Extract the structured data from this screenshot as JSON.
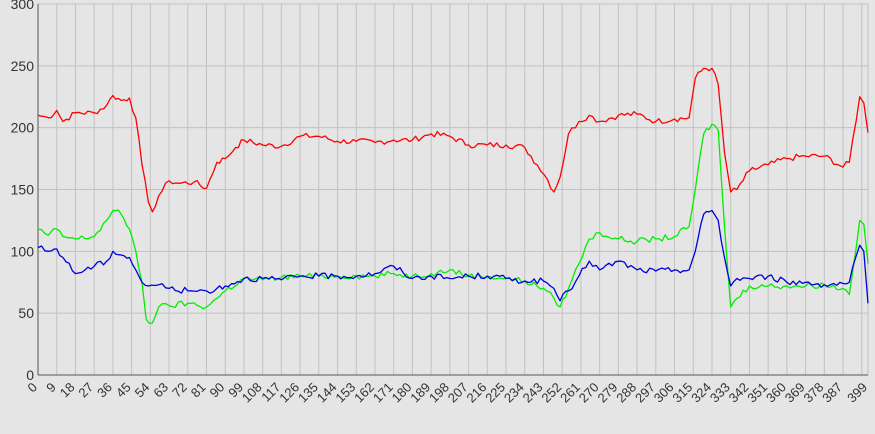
{
  "chart_data": {
    "type": "line",
    "title": "",
    "xlabel": "",
    "ylabel": "",
    "xlim": [
      0,
      399
    ],
    "ylim": [
      0,
      300
    ],
    "grid": true,
    "y_ticks": [
      "0",
      "50",
      "100",
      "150",
      "200",
      "250",
      "300"
    ],
    "x_ticks": [
      "0",
      "9",
      "18",
      "27",
      "36",
      "45",
      "54",
      "63",
      "72",
      "81",
      "90",
      "99",
      "108",
      "117",
      "126",
      "135",
      "144",
      "153",
      "162",
      "171",
      "180",
      "189",
      "198",
      "207",
      "216",
      "225",
      "234",
      "243",
      "252",
      "261",
      "270",
      "279",
      "288",
      "297",
      "306",
      "315",
      "324",
      "333",
      "342",
      "351",
      "360",
      "369",
      "378",
      "387",
      "399"
    ],
    "series": [
      {
        "color": "#ff0000",
        "points": [
          [
            0,
            210
          ],
          [
            5,
            208
          ],
          [
            9,
            214
          ],
          [
            12,
            205
          ],
          [
            18,
            212
          ],
          [
            27,
            212
          ],
          [
            33,
            218
          ],
          [
            36,
            226
          ],
          [
            40,
            222
          ],
          [
            44,
            224
          ],
          [
            47,
            208
          ],
          [
            50,
            170
          ],
          [
            53,
            140
          ],
          [
            55,
            132
          ],
          [
            58,
            145
          ],
          [
            63,
            157
          ],
          [
            68,
            155
          ],
          [
            75,
            156
          ],
          [
            81,
            151
          ],
          [
            86,
            172
          ],
          [
            90,
            175
          ],
          [
            95,
            184
          ],
          [
            99,
            190
          ],
          [
            108,
            186
          ],
          [
            117,
            185
          ],
          [
            126,
            193
          ],
          [
            135,
            193
          ],
          [
            144,
            189
          ],
          [
            153,
            189
          ],
          [
            162,
            188
          ],
          [
            171,
            190
          ],
          [
            180,
            190
          ],
          [
            189,
            195
          ],
          [
            198,
            193
          ],
          [
            207,
            186
          ],
          [
            216,
            186
          ],
          [
            225,
            186
          ],
          [
            234,
            184
          ],
          [
            240,
            170
          ],
          [
            245,
            158
          ],
          [
            248,
            148
          ],
          [
            251,
            160
          ],
          [
            255,
            195
          ],
          [
            260,
            205
          ],
          [
            265,
            210
          ],
          [
            270,
            205
          ],
          [
            279,
            210
          ],
          [
            288,
            211
          ],
          [
            297,
            205
          ],
          [
            306,
            207
          ],
          [
            313,
            208
          ],
          [
            316,
            240
          ],
          [
            320,
            248
          ],
          [
            324,
            248
          ],
          [
            327,
            235
          ],
          [
            330,
            180
          ],
          [
            333,
            148
          ],
          [
            336,
            150
          ],
          [
            342,
            165
          ],
          [
            351,
            170
          ],
          [
            360,
            175
          ],
          [
            369,
            177
          ],
          [
            378,
            177
          ],
          [
            387,
            168
          ],
          [
            390,
            172
          ],
          [
            395,
            225
          ],
          [
            397,
            220
          ],
          [
            399,
            196
          ]
        ]
      },
      {
        "color": "#00ee00",
        "points": [
          [
            0,
            118
          ],
          [
            5,
            113
          ],
          [
            9,
            118
          ],
          [
            12,
            112
          ],
          [
            18,
            110
          ],
          [
            27,
            112
          ],
          [
            33,
            125
          ],
          [
            36,
            133
          ],
          [
            40,
            130
          ],
          [
            44,
            118
          ],
          [
            47,
            100
          ],
          [
            50,
            75
          ],
          [
            52,
            45
          ],
          [
            55,
            42
          ],
          [
            58,
            55
          ],
          [
            63,
            56
          ],
          [
            72,
            58
          ],
          [
            81,
            55
          ],
          [
            86,
            62
          ],
          [
            90,
            68
          ],
          [
            99,
            78
          ],
          [
            108,
            77
          ],
          [
            117,
            79
          ],
          [
            126,
            80
          ],
          [
            135,
            80
          ],
          [
            144,
            80
          ],
          [
            153,
            80
          ],
          [
            162,
            80
          ],
          [
            171,
            82
          ],
          [
            180,
            80
          ],
          [
            189,
            82
          ],
          [
            198,
            85
          ],
          [
            207,
            80
          ],
          [
            216,
            80
          ],
          [
            225,
            78
          ],
          [
            234,
            76
          ],
          [
            243,
            70
          ],
          [
            248,
            62
          ],
          [
            251,
            55
          ],
          [
            255,
            70
          ],
          [
            260,
            90
          ],
          [
            265,
            110
          ],
          [
            270,
            115
          ],
          [
            279,
            110
          ],
          [
            288,
            108
          ],
          [
            297,
            110
          ],
          [
            306,
            112
          ],
          [
            313,
            120
          ],
          [
            316,
            150
          ],
          [
            320,
            195
          ],
          [
            324,
            203
          ],
          [
            327,
            198
          ],
          [
            330,
            120
          ],
          [
            333,
            55
          ],
          [
            336,
            62
          ],
          [
            342,
            72
          ],
          [
            351,
            72
          ],
          [
            360,
            72
          ],
          [
            369,
            72
          ],
          [
            378,
            73
          ],
          [
            387,
            70
          ],
          [
            390,
            65
          ],
          [
            395,
            125
          ],
          [
            397,
            122
          ],
          [
            399,
            90
          ]
        ]
      },
      {
        "color": "#0000dd",
        "points": [
          [
            0,
            103
          ],
          [
            5,
            100
          ],
          [
            9,
            102
          ],
          [
            12,
            95
          ],
          [
            18,
            82
          ],
          [
            27,
            88
          ],
          [
            33,
            92
          ],
          [
            36,
            100
          ],
          [
            40,
            97
          ],
          [
            44,
            95
          ],
          [
            47,
            85
          ],
          [
            50,
            75
          ],
          [
            53,
            72
          ],
          [
            58,
            73
          ],
          [
            63,
            70
          ],
          [
            72,
            68
          ],
          [
            81,
            68
          ],
          [
            86,
            70
          ],
          [
            90,
            72
          ],
          [
            99,
            78
          ],
          [
            108,
            78
          ],
          [
            117,
            77
          ],
          [
            126,
            80
          ],
          [
            135,
            80
          ],
          [
            144,
            80
          ],
          [
            153,
            80
          ],
          [
            162,
            82
          ],
          [
            171,
            88
          ],
          [
            180,
            78
          ],
          [
            189,
            80
          ],
          [
            198,
            78
          ],
          [
            207,
            80
          ],
          [
            216,
            80
          ],
          [
            225,
            78
          ],
          [
            234,
            76
          ],
          [
            243,
            76
          ],
          [
            248,
            70
          ],
          [
            251,
            60
          ],
          [
            255,
            68
          ],
          [
            260,
            80
          ],
          [
            265,
            92
          ],
          [
            270,
            85
          ],
          [
            279,
            92
          ],
          [
            288,
            85
          ],
          [
            297,
            84
          ],
          [
            306,
            85
          ],
          [
            313,
            85
          ],
          [
            316,
            100
          ],
          [
            320,
            130
          ],
          [
            324,
            133
          ],
          [
            327,
            125
          ],
          [
            330,
            95
          ],
          [
            333,
            72
          ],
          [
            336,
            78
          ],
          [
            342,
            78
          ],
          [
            351,
            80
          ],
          [
            360,
            75
          ],
          [
            369,
            75
          ],
          [
            378,
            73
          ],
          [
            387,
            74
          ],
          [
            390,
            75
          ],
          [
            395,
            105
          ],
          [
            397,
            100
          ],
          [
            399,
            58
          ]
        ]
      }
    ]
  }
}
